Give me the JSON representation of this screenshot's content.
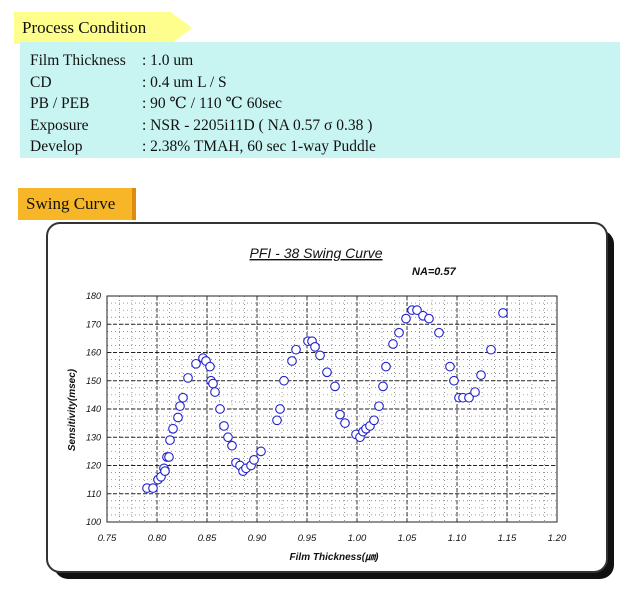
{
  "process": {
    "title": "Process Condition",
    "rows": [
      {
        "label": "Film Thickness",
        "value": ": 1.0 um"
      },
      {
        "label": "CD",
        "value": ": 0.4 um L / S"
      },
      {
        "label": "PB / PEB",
        "value": ": 90 ℃ / 110 ℃ 60sec"
      },
      {
        "label": "Exposure",
        "value": ": NSR - 2205i11D ( NA 0.57 σ 0.38 )"
      },
      {
        "label": "Develop",
        "value": ": 2.38% TMAH, 60 sec 1-way Puddle"
      }
    ]
  },
  "swing": {
    "title": "Swing Curve"
  },
  "colors": {
    "marker": "#2222cc",
    "process_bg": "#c8f4f2",
    "process_tag": "#fefe8c",
    "swing_tag": "#f6b628"
  },
  "chart_data": {
    "type": "scatter",
    "title": "PFI - 38 Swing Curve",
    "annotation": "NA=0.57",
    "xlabel": "Film Thickness(㎛)",
    "ylabel": "Sensitivity(msec)",
    "xlim": [
      0.75,
      1.2
    ],
    "ylim": [
      100,
      180
    ],
    "xticks": [
      "0.75",
      "0.80",
      "0.85",
      "0.90",
      "0.95",
      "1.00",
      "1.05",
      "1.10",
      "1.15",
      "1.20"
    ],
    "yticks": [
      "100",
      "110",
      "120",
      "130",
      "140",
      "150",
      "160",
      "170",
      "180"
    ],
    "grid": true,
    "legend": "none",
    "points": [
      {
        "x": 0.79,
        "y": 112
      },
      {
        "x": 0.796,
        "y": 112
      },
      {
        "x": 0.801,
        "y": 115
      },
      {
        "x": 0.804,
        "y": 116
      },
      {
        "x": 0.807,
        "y": 119
      },
      {
        "x": 0.808,
        "y": 118
      },
      {
        "x": 0.81,
        "y": 123
      },
      {
        "x": 0.812,
        "y": 123
      },
      {
        "x": 0.813,
        "y": 129
      },
      {
        "x": 0.816,
        "y": 133
      },
      {
        "x": 0.821,
        "y": 137
      },
      {
        "x": 0.823,
        "y": 141
      },
      {
        "x": 0.826,
        "y": 144
      },
      {
        "x": 0.831,
        "y": 151
      },
      {
        "x": 0.839,
        "y": 156
      },
      {
        "x": 0.846,
        "y": 158
      },
      {
        "x": 0.849,
        "y": 157
      },
      {
        "x": 0.853,
        "y": 155
      },
      {
        "x": 0.854,
        "y": 150
      },
      {
        "x": 0.856,
        "y": 149
      },
      {
        "x": 0.858,
        "y": 146
      },
      {
        "x": 0.863,
        "y": 140
      },
      {
        "x": 0.867,
        "y": 134
      },
      {
        "x": 0.871,
        "y": 130
      },
      {
        "x": 0.875,
        "y": 127
      },
      {
        "x": 0.879,
        "y": 121
      },
      {
        "x": 0.883,
        "y": 120
      },
      {
        "x": 0.886,
        "y": 118
      },
      {
        "x": 0.889,
        "y": 119
      },
      {
        "x": 0.894,
        "y": 120
      },
      {
        "x": 0.897,
        "y": 122
      },
      {
        "x": 0.904,
        "y": 125
      },
      {
        "x": 0.92,
        "y": 136
      },
      {
        "x": 0.923,
        "y": 140
      },
      {
        "x": 0.927,
        "y": 150
      },
      {
        "x": 0.935,
        "y": 157
      },
      {
        "x": 0.939,
        "y": 161
      },
      {
        "x": 0.951,
        "y": 164
      },
      {
        "x": 0.955,
        "y": 164
      },
      {
        "x": 0.958,
        "y": 162
      },
      {
        "x": 0.963,
        "y": 159
      },
      {
        "x": 0.97,
        "y": 153
      },
      {
        "x": 0.978,
        "y": 148
      },
      {
        "x": 0.983,
        "y": 138
      },
      {
        "x": 0.988,
        "y": 135
      },
      {
        "x": 0.999,
        "y": 131
      },
      {
        "x": 1.003,
        "y": 130
      },
      {
        "x": 1.006,
        "y": 132
      },
      {
        "x": 1.009,
        "y": 133
      },
      {
        "x": 1.013,
        "y": 134
      },
      {
        "x": 1.017,
        "y": 136
      },
      {
        "x": 1.022,
        "y": 141
      },
      {
        "x": 1.026,
        "y": 148
      },
      {
        "x": 1.029,
        "y": 155
      },
      {
        "x": 1.036,
        "y": 163
      },
      {
        "x": 1.042,
        "y": 167
      },
      {
        "x": 1.049,
        "y": 172
      },
      {
        "x": 1.055,
        "y": 175
      },
      {
        "x": 1.06,
        "y": 175
      },
      {
        "x": 1.066,
        "y": 173
      },
      {
        "x": 1.072,
        "y": 172
      },
      {
        "x": 1.082,
        "y": 167
      },
      {
        "x": 1.093,
        "y": 155
      },
      {
        "x": 1.097,
        "y": 150
      },
      {
        "x": 1.102,
        "y": 144
      },
      {
        "x": 1.106,
        "y": 144
      },
      {
        "x": 1.112,
        "y": 144
      },
      {
        "x": 1.118,
        "y": 146
      },
      {
        "x": 1.124,
        "y": 152
      },
      {
        "x": 1.134,
        "y": 161
      },
      {
        "x": 1.146,
        "y": 174
      }
    ]
  }
}
